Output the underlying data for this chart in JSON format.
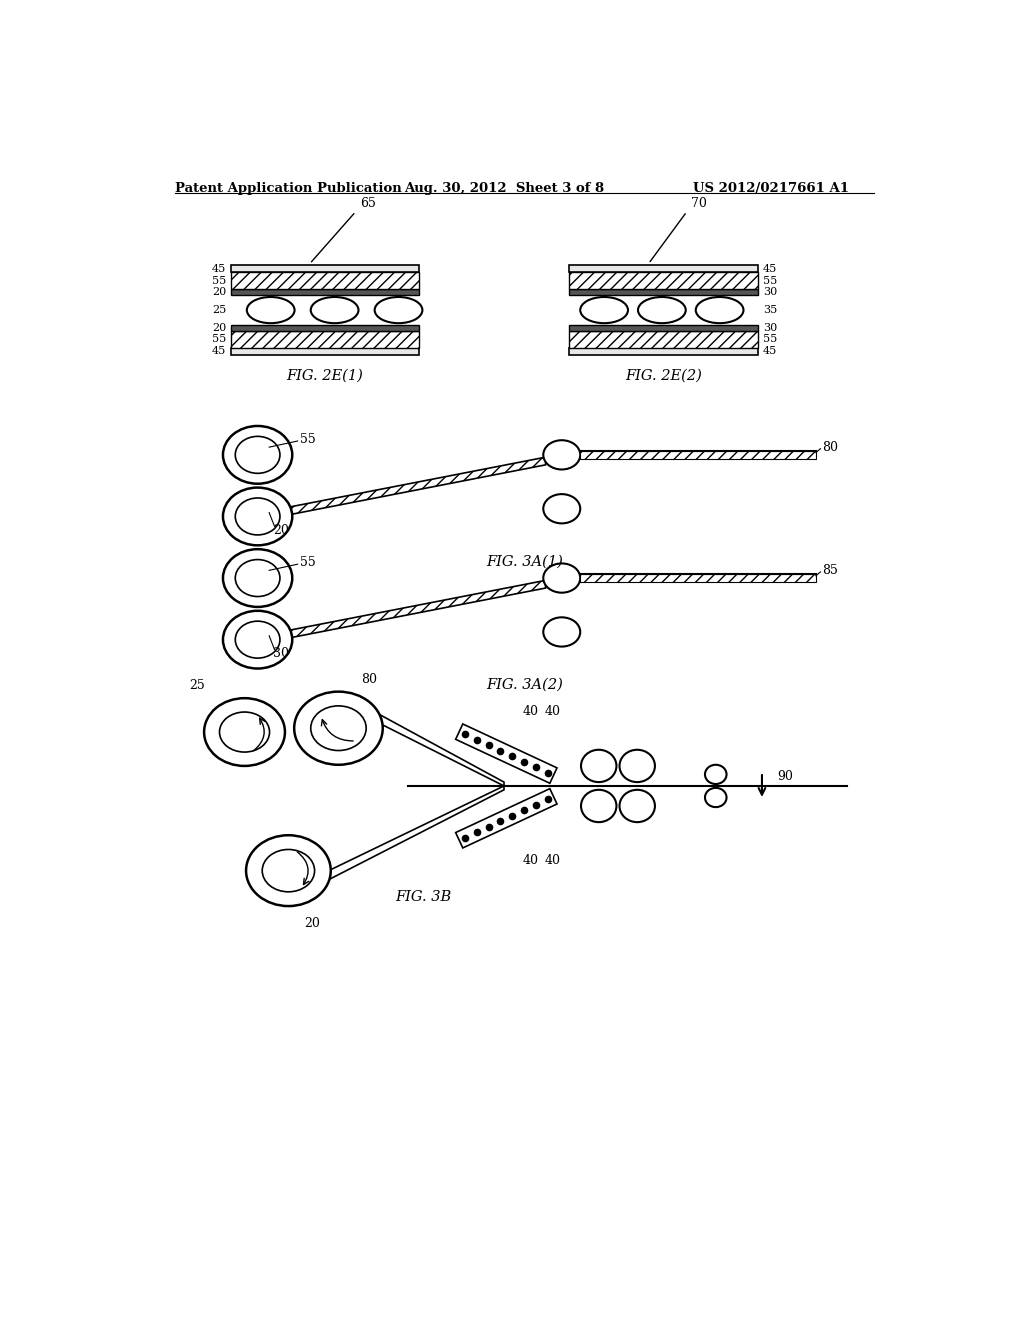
{
  "title_left": "Patent Application Publication",
  "title_center": "Aug. 30, 2012  Sheet 3 of 8",
  "title_right": "US 2012/0217661 A1",
  "background": "#ffffff",
  "line_color": "#000000"
}
